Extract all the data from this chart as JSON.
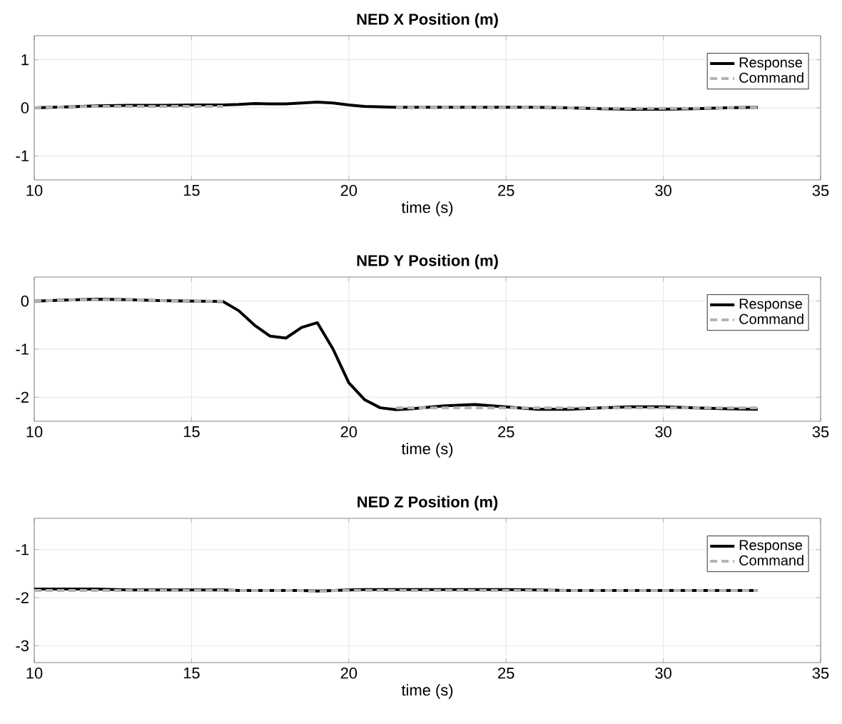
{
  "chart_data": [
    {
      "type": "line",
      "title": "NED X Position (m)",
      "xlabel": "time (s)",
      "xlim": [
        10,
        35
      ],
      "xticks": [
        10,
        15,
        20,
        25,
        30,
        35
      ],
      "ylim": [
        -1.5,
        1.5
      ],
      "yticks": [
        -1,
        0,
        1
      ],
      "grid": true,
      "legend": "top right",
      "x": [
        10,
        11,
        12,
        13,
        14,
        15,
        16,
        16.5,
        17,
        17.5,
        18,
        18.5,
        19,
        19.5,
        20,
        20.5,
        21,
        21.5,
        22,
        23,
        24,
        25,
        26,
        27,
        28,
        29,
        30,
        31,
        32,
        33
      ],
      "series": [
        {
          "name": "Response",
          "color": "#000000",
          "line_style": "solid",
          "values": [
            0,
            0.02,
            0.04,
            0.05,
            0.05,
            0.06,
            0.06,
            0.07,
            0.09,
            0.08,
            0.08,
            0.1,
            0.12,
            0.1,
            0.06,
            0.03,
            0.02,
            0.01,
            0.01,
            0.01,
            0.01,
            0.01,
            0.01,
            0.0,
            -0.02,
            -0.03,
            -0.03,
            -0.02,
            0.0,
            0.01
          ]
        },
        {
          "name": "Command",
          "color": "#b3b3b3",
          "line_style": "dashed",
          "values": [
            0,
            0.02,
            0.03,
            0.03,
            0.03,
            0.03,
            0.03,
            null,
            null,
            null,
            null,
            null,
            null,
            null,
            null,
            null,
            null,
            0.01,
            0.01,
            0.01,
            0.01,
            0.01,
            0.01,
            0.0,
            -0.01,
            -0.01,
            -0.01,
            -0.01,
            0.0,
            0.01
          ]
        }
      ]
    },
    {
      "type": "line",
      "title": "NED Y Position (m)",
      "xlabel": "time (s)",
      "xlim": [
        10,
        35
      ],
      "xticks": [
        10,
        15,
        20,
        25,
        30,
        35
      ],
      "ylim": [
        -2.5,
        0.5
      ],
      "yticks": [
        -2,
        -1,
        0
      ],
      "grid": true,
      "legend": "top right",
      "x": [
        10,
        11,
        12,
        13,
        14,
        15,
        16,
        16.5,
        17,
        17.5,
        18,
        18.5,
        19,
        19.5,
        20,
        20.5,
        21,
        21.5,
        22,
        23,
        24,
        25,
        26,
        27,
        28,
        29,
        30,
        31,
        32,
        33
      ],
      "series": [
        {
          "name": "Response",
          "color": "#000000",
          "line_style": "solid",
          "values": [
            0,
            0.02,
            0.04,
            0.03,
            0.01,
            0,
            -0.01,
            -0.2,
            -0.5,
            -0.73,
            -0.77,
            -0.55,
            -0.45,
            -1.0,
            -1.7,
            -2.05,
            -2.22,
            -2.26,
            -2.24,
            -2.18,
            -2.15,
            -2.2,
            -2.25,
            -2.25,
            -2.22,
            -2.2,
            -2.2,
            -2.22,
            -2.24,
            -2.25
          ]
        },
        {
          "name": "Command",
          "color": "#b3b3b3",
          "line_style": "dashed",
          "values": [
            0,
            0.02,
            0.03,
            0.03,
            0.01,
            0,
            0,
            null,
            null,
            null,
            null,
            null,
            null,
            null,
            null,
            null,
            null,
            -2.22,
            -2.22,
            -2.22,
            -2.22,
            -2.22,
            -2.22,
            -2.22,
            -2.22,
            -2.22,
            -2.22,
            -2.22,
            -2.22,
            -2.22
          ]
        }
      ]
    },
    {
      "type": "line",
      "title": "NED Z Position (m)",
      "xlabel": "time (s)",
      "xlim": [
        10,
        35
      ],
      "xticks": [
        10,
        15,
        20,
        25,
        30,
        35
      ],
      "ylim": [
        -3.35,
        -0.35
      ],
      "yticks": [
        -3,
        -2,
        -1
      ],
      "grid": true,
      "legend": "top right",
      "x": [
        10,
        11,
        12,
        13,
        14,
        15,
        16,
        16.5,
        17,
        17.5,
        18,
        18.5,
        19,
        19.5,
        20,
        20.5,
        21,
        21.5,
        22,
        23,
        24,
        25,
        26,
        27,
        28,
        29,
        30,
        31,
        32,
        33
      ],
      "series": [
        {
          "name": "Response",
          "color": "#000000",
          "line_style": "solid",
          "values": [
            -1.82,
            -1.82,
            -1.82,
            -1.84,
            -1.84,
            -1.84,
            -1.84,
            -1.85,
            -1.85,
            -1.85,
            -1.85,
            -1.85,
            -1.86,
            -1.85,
            -1.84,
            -1.83,
            -1.83,
            -1.83,
            -1.83,
            -1.83,
            -1.83,
            -1.83,
            -1.84,
            -1.85,
            -1.85,
            -1.85,
            -1.85,
            -1.85,
            -1.85,
            -1.85
          ]
        },
        {
          "name": "Command",
          "color": "#b3b3b3",
          "line_style": "dashed",
          "values": [
            -1.85,
            -1.85,
            -1.85,
            -1.85,
            -1.85,
            -1.85,
            -1.85,
            -1.85,
            -1.85,
            -1.85,
            -1.85,
            -1.85,
            -1.87,
            -1.85,
            -1.85,
            -1.85,
            -1.85,
            -1.85,
            -1.85,
            -1.85,
            -1.85,
            -1.85,
            -1.85,
            -1.85,
            -1.85,
            -1.85,
            -1.85,
            -1.85,
            -1.85,
            -1.85
          ]
        }
      ]
    }
  ]
}
